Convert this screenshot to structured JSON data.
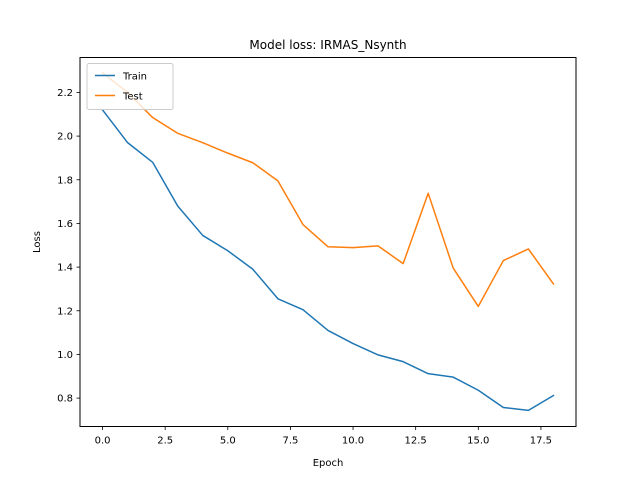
{
  "chart_data": {
    "type": "line",
    "title": "Model loss: IRMAS_Nsynth",
    "xlabel": "Epoch",
    "ylabel": "Loss",
    "xlim": [
      -0.9,
      18.9
    ],
    "ylim": [
      0.67,
      2.36
    ],
    "xticks": [
      0.0,
      2.5,
      5.0,
      7.5,
      10.0,
      12.5,
      15.0,
      17.5
    ],
    "xtick_labels": [
      "0.0",
      "2.5",
      "5.0",
      "7.5",
      "10.0",
      "12.5",
      "15.0",
      "17.5"
    ],
    "yticks": [
      0.8,
      1.0,
      1.2,
      1.4,
      1.6,
      1.8,
      2.0,
      2.2
    ],
    "ytick_labels": [
      "0.8",
      "1.0",
      "1.2",
      "1.4",
      "1.6",
      "1.8",
      "2.0",
      "2.2"
    ],
    "grid": false,
    "legend_position": "top-left",
    "x": [
      0,
      1,
      2,
      3,
      4,
      5,
      6,
      7,
      8,
      9,
      10,
      11,
      12,
      13,
      14,
      15,
      16,
      17,
      18
    ],
    "series": [
      {
        "name": "Train",
        "color": "#1f77b4",
        "values": [
          2.12,
          1.97,
          1.88,
          1.68,
          1.545,
          1.475,
          1.39,
          1.255,
          1.205,
          1.11,
          1.05,
          0.998,
          0.967,
          0.912,
          0.896,
          0.836,
          0.757,
          0.744,
          0.812
        ]
      },
      {
        "name": "Test",
        "color": "#ff7f0e",
        "values": [
          2.29,
          2.2,
          2.085,
          2.013,
          1.97,
          1.922,
          1.878,
          1.795,
          1.595,
          1.493,
          1.489,
          1.497,
          1.416,
          1.738,
          1.395,
          1.22,
          1.43,
          1.483,
          1.323
        ]
      }
    ]
  }
}
